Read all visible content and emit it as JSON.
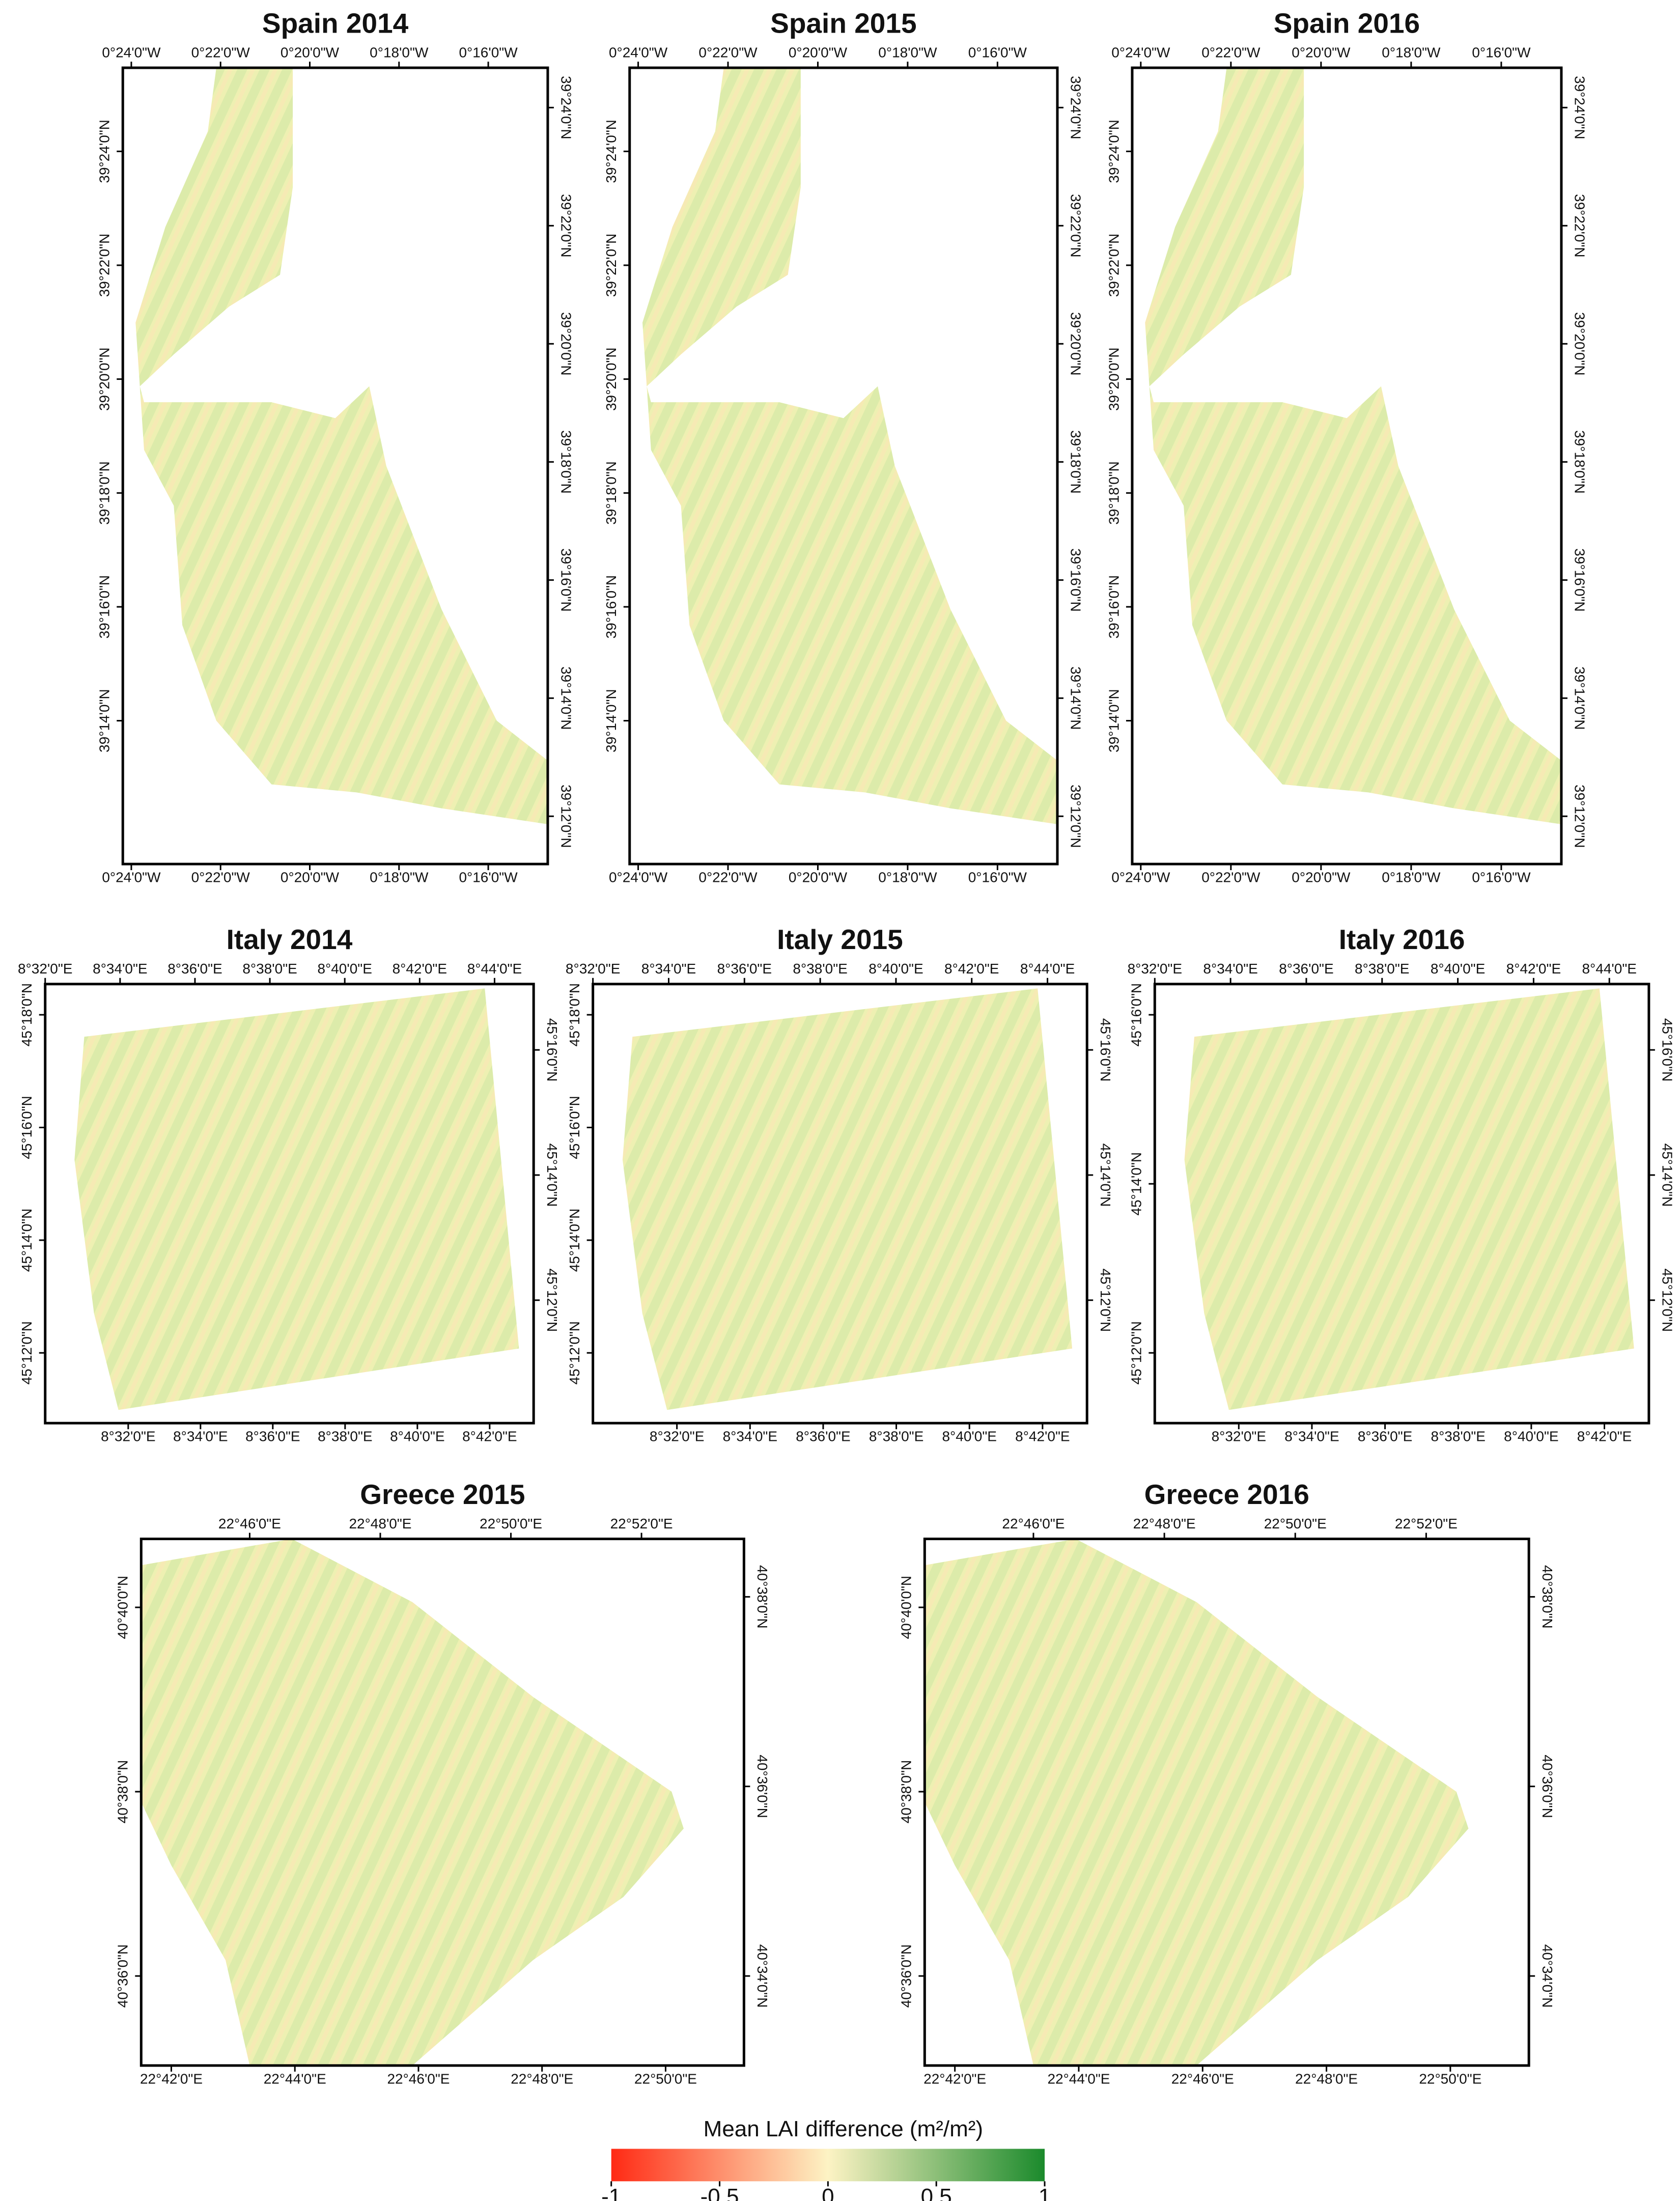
{
  "panels": [
    {
      "title": "Spain 2014",
      "top_ticks": [
        "0°24'0\"W",
        "0°22'0\"W",
        "0°20'0\"W",
        "0°18'0\"W",
        "0°16'0\"W"
      ],
      "bottom_ticks": [
        "0°24'0\"W",
        "0°22'0\"W",
        "0°20'0\"W",
        "0°18'0\"W",
        "0°16'0\"W"
      ],
      "left_ticks": [
        "39°24'0\"N",
        "39°22'0\"N",
        "39°20'0\"N",
        "39°18'0\"N",
        "39°16'0\"N",
        "39°14'0\"N"
      ],
      "right_ticks": [
        "39°24'0\"N",
        "39°22'0\"N",
        "39°20'0\"N",
        "39°18'0\"N",
        "39°16'0\"N",
        "39°14'0\"N",
        "39°12'0\"N"
      ]
    },
    {
      "title": "Spain 2015",
      "top_ticks": [
        "0°24'0\"W",
        "0°22'0\"W",
        "0°20'0\"W",
        "0°18'0\"W",
        "0°16'0\"W"
      ],
      "bottom_ticks": [
        "0°24'0\"W",
        "0°22'0\"W",
        "0°20'0\"W",
        "0°18'0\"W",
        "0°16'0\"W"
      ],
      "left_ticks": [
        "39°24'0\"N",
        "39°22'0\"N",
        "39°20'0\"N",
        "39°18'0\"N",
        "39°16'0\"N",
        "39°14'0\"N"
      ],
      "right_ticks": [
        "39°24'0\"N",
        "39°22'0\"N",
        "39°20'0\"N",
        "39°18'0\"N",
        "39°16'0\"N",
        "39°14'0\"N",
        "39°12'0\"N"
      ]
    },
    {
      "title": "Spain 2016",
      "top_ticks": [
        "0°24'0\"W",
        "0°22'0\"W",
        "0°20'0\"W",
        "0°18'0\"W",
        "0°16'0\"W"
      ],
      "bottom_ticks": [
        "0°24'0\"W",
        "0°22'0\"W",
        "0°20'0\"W",
        "0°18'0\"W",
        "0°16'0\"W"
      ],
      "left_ticks": [
        "39°24'0\"N",
        "39°22'0\"N",
        "39°20'0\"N",
        "39°18'0\"N",
        "39°16'0\"N",
        "39°14'0\"N"
      ],
      "right_ticks": [
        "39°24'0\"N",
        "39°22'0\"N",
        "39°20'0\"N",
        "39°18'0\"N",
        "39°16'0\"N",
        "39°14'0\"N",
        "39°12'0\"N"
      ]
    },
    {
      "title": "Italy 2014",
      "top_ticks": [
        "8°32'0\"E",
        "8°34'0\"E",
        "8°36'0\"E",
        "8°38'0\"E",
        "8°40'0\"E",
        "8°42'0\"E",
        "8°44'0\"E"
      ],
      "bottom_ticks": [
        "8°32'0\"E",
        "8°34'0\"E",
        "8°36'0\"E",
        "8°38'0\"E",
        "8°40'0\"E",
        "8°42'0\"E"
      ],
      "left_ticks": [
        "45°18'0\"N",
        "45°16'0\"N",
        "45°14'0\"N",
        "45°12'0\"N"
      ],
      "right_ticks": [
        "45°16'0\"N",
        "45°14'0\"N",
        "45°12'0\"N"
      ]
    },
    {
      "title": "Italy 2015",
      "top_ticks": [
        "8°32'0\"E",
        "8°34'0\"E",
        "8°36'0\"E",
        "8°38'0\"E",
        "8°40'0\"E",
        "8°42'0\"E",
        "8°44'0\"E"
      ],
      "bottom_ticks": [
        "8°32'0\"E",
        "8°34'0\"E",
        "8°36'0\"E",
        "8°38'0\"E",
        "8°40'0\"E",
        "8°42'0\"E"
      ],
      "left_ticks": [
        "45°18'0\"N",
        "45°16'0\"N",
        "45°14'0\"N",
        "45°12'0\"N"
      ],
      "right_ticks": [
        "45°16'0\"N",
        "45°14'0\"N",
        "45°12'0\"N"
      ]
    },
    {
      "title": "Italy 2016",
      "top_ticks": [
        "8°32'0\"E",
        "8°34'0\"E",
        "8°36'0\"E",
        "8°38'0\"E",
        "8°40'0\"E",
        "8°42'0\"E",
        "8°44'0\"E"
      ],
      "bottom_ticks": [
        "8°32'0\"E",
        "8°34'0\"E",
        "8°36'0\"E",
        "8°38'0\"E",
        "8°40'0\"E",
        "8°42'0\"E"
      ],
      "left_ticks": [
        "45°16'0\"N",
        "45°14'0\"N",
        "45°12'0\"N"
      ],
      "right_ticks": [
        "45°16'0\"N",
        "45°14'0\"N",
        "45°12'0\"N"
      ]
    },
    {
      "title": "Greece 2015",
      "top_ticks": [
        "22°46'0\"E",
        "22°48'0\"E",
        "22°50'0\"E",
        "22°52'0\"E"
      ],
      "bottom_ticks": [
        "22°42'0\"E",
        "22°44'0\"E",
        "22°46'0\"E",
        "22°48'0\"E",
        "22°50'0\"E"
      ],
      "left_ticks": [
        "40°40'0\"N",
        "40°38'0\"N",
        "40°36'0\"N"
      ],
      "right_ticks": [
        "40°38'0\"N",
        "40°36'0\"N",
        "40°34'0\"N"
      ]
    },
    {
      "title": "Greece 2016",
      "top_ticks": [
        "22°46'0\"E",
        "22°48'0\"E",
        "22°50'0\"E",
        "22°52'0\"E"
      ],
      "bottom_ticks": [
        "22°42'0\"E",
        "22°44'0\"E",
        "22°46'0\"E",
        "22°48'0\"E",
        "22°50'0\"E"
      ],
      "left_ticks": [
        "40°40'0\"N",
        "40°38'0\"N",
        "40°36'0\"N"
      ],
      "right_ticks": [
        "40°38'0\"N",
        "40°36'0\"N",
        "40°34'0\"N"
      ]
    }
  ],
  "legend": {
    "title": "Mean LAI difference (m²/m²)",
    "lim": [
      -1,
      1
    ],
    "ticks": [
      -1,
      -0.5,
      0,
      0.5,
      1
    ],
    "colors": [
      "#ff2a14",
      "#fdf3c4",
      "#1b8a2c"
    ]
  }
}
